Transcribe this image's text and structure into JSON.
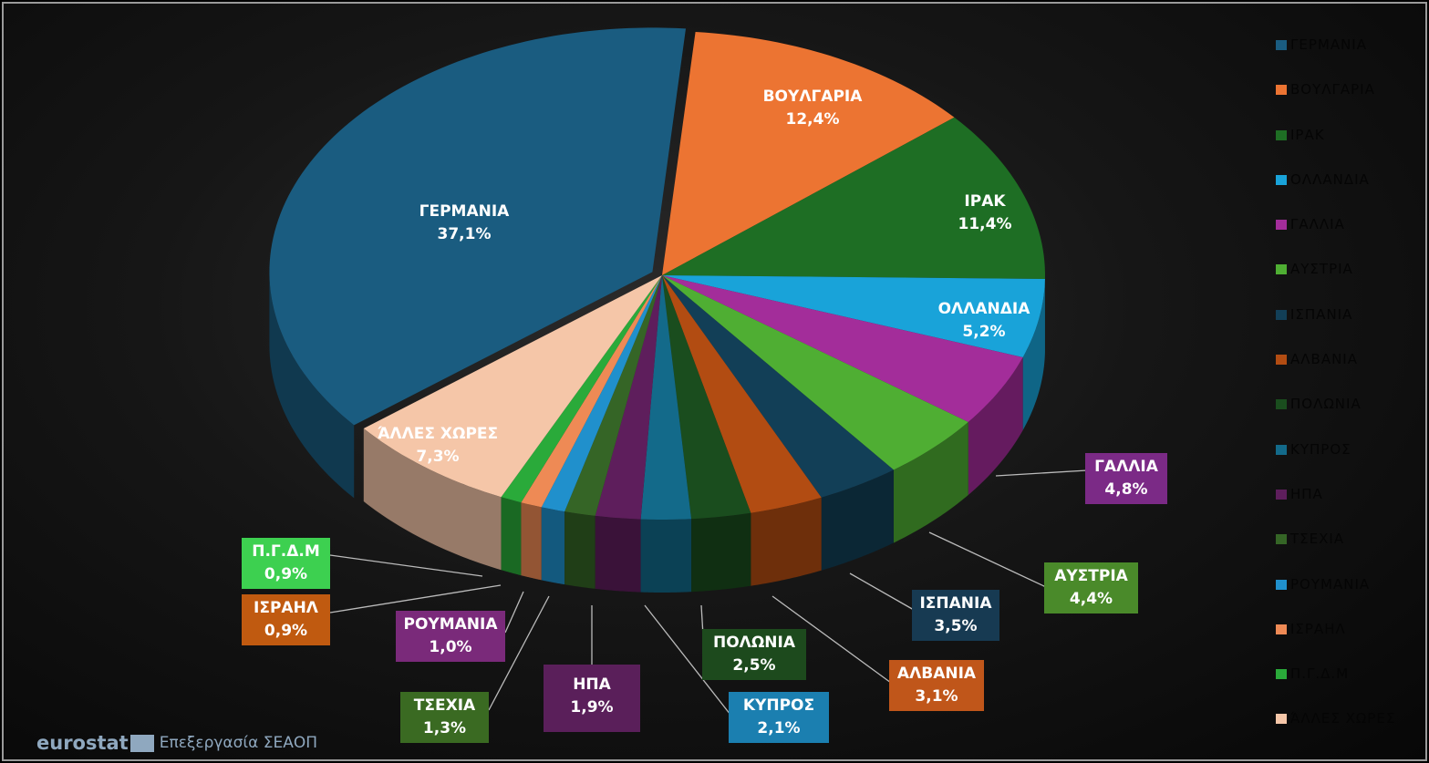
{
  "chart_data": {
    "type": "pie",
    "title": "",
    "categories": [
      "ΒΟΥΛΓΑΡΙΑ",
      "ΙΡΑΚ",
      "ΟΛΛΑΝΔΙΑ",
      "ΓΑΛΛΙΑ",
      "ΑΥΣΤΡΙΑ",
      "ΙΣΠΑΝΙΑ",
      "ΑΛΒΑΝΙΑ",
      "ΠΟΛΩΝΙΑ",
      "ΚΥΠΡΟΣ",
      "ΗΠΑ",
      "ΤΣΕΧΙΑ",
      "ΡΟΥΜΑΝΙΑ",
      "ΙΣΡΑΗΛ",
      "Π.Γ.Δ.Μ",
      "ΆΛΛΕΣ ΧΩΡΕΣ",
      "ΓΕΡΜΑΝΙΑ"
    ],
    "values": [
      12.4,
      11.4,
      5.2,
      4.8,
      4.4,
      3.5,
      3.1,
      2.5,
      2.1,
      1.9,
      1.3,
      1.0,
      0.9,
      0.9,
      7.3,
      37.1
    ],
    "labels": [
      "12,4%",
      "11,4%",
      "5,2%",
      "4,8%",
      "4,4%",
      "3,5%",
      "3,1%",
      "2,5%",
      "2,1%",
      "1,9%",
      "1,3%",
      "1,0%",
      "0,9%",
      "0,9%",
      "7,3%",
      "37,1%"
    ],
    "colors": [
      "#ec7432",
      "#1e6e24",
      "#19a3d9",
      "#a32d9a",
      "#4fae33",
      "#123f57",
      "#b24c12",
      "#1a4d1e",
      "#136a8a",
      "#5e1e5c",
      "#356526",
      "#2090cc",
      "#ee8a55",
      "#2aaa3a",
      "#f5c6a8",
      "#1a5c80"
    ],
    "legend_placement": "right",
    "legend": [
      "ΓΕΡΜΑΝΙΑ",
      "ΒΟΥΛΓΑΡΙΑ",
      "ΙΡΑΚ",
      "ΟΛΛΑΝΔΙΑ",
      "ΓΑΛΛΙΑ",
      "ΑΥΣΤΡΙΑ",
      "ΙΣΠΑΝΙΑ",
      "ΑΛΒΑΝΙΑ",
      "ΠΟΛΩΝΙΑ",
      "ΚΥΠΡΟΣ",
      "ΗΠΑ",
      "ΤΣΕΧΙΑ",
      "ΡΟΥΜΑΝΙΑ",
      "ΙΣΡΑΗΛ",
      "Π.Γ.Δ.Μ",
      "ΆΛΛΕΣ ΧΩΡΕΣ"
    ]
  },
  "footer": {
    "logo": "eurostat",
    "source": "Επεξεργασία ΣΕΑΟΠ"
  }
}
